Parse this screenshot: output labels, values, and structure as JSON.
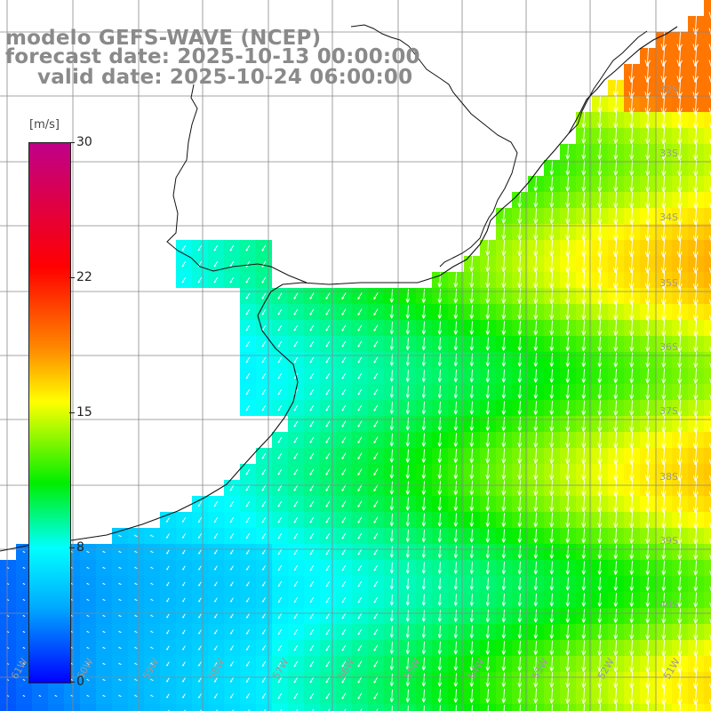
{
  "title": {
    "model": "modelo GEFS-WAVE (NCEP)",
    "forecast": "forecast date: 2025-10-13 00:00:00",
    "valid": "valid date: 2025-10-24 06:00:00"
  },
  "colorbar": {
    "unit": "[m/s]",
    "ticks": [
      {
        "label": "30",
        "value": 30
      },
      {
        "label": "22",
        "value": 22
      },
      {
        "label": "15",
        "value": 15
      },
      {
        "label": "8",
        "value": 8
      },
      {
        "label": "0",
        "value": 0
      }
    ],
    "min": 0,
    "max": 30,
    "colors": [
      "#0000ff",
      "#00aaff",
      "#00ffff",
      "#00ee00",
      "#ffff00",
      "#ff8800",
      "#ff0000",
      "#c00088"
    ]
  },
  "map": {
    "lon_range": [
      -62,
      -51.1
    ],
    "lat_range": [
      -41.6,
      -31.6
    ],
    "lat_labels": [
      "32S",
      "33S",
      "34S",
      "35S",
      "36S",
      "37S",
      "38S",
      "39S",
      "40S"
    ],
    "lon_labels": [
      "61W",
      "60W",
      "59W",
      "58W",
      "57W",
      "56W",
      "55W",
      "54W",
      "53W",
      "52W",
      "51W"
    ],
    "field": "wind speed with direction arrows"
  }
}
